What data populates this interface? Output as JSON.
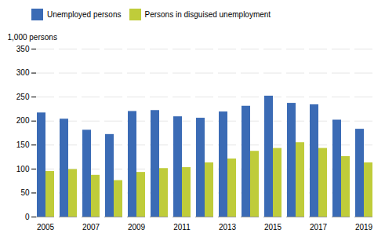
{
  "chart_data": {
    "type": "bar",
    "categories": [
      "2005",
      null,
      "2007",
      null,
      "2009",
      null,
      "2011",
      null,
      "2013",
      null,
      "2015",
      null,
      "2017",
      null,
      "2019"
    ],
    "series": [
      {
        "name": "Unemployed persons",
        "color": "#3B6BB5",
        "values": [
          217,
          204,
          181,
          172,
          220,
          222,
          209,
          206,
          219,
          231,
          252,
          237,
          234,
          202,
          183
        ]
      },
      {
        "name": "Persons in disguised unemployment",
        "color": "#BFCC3A",
        "values": [
          95,
          99,
          87,
          76,
          93,
          101,
          103,
          113,
          121,
          137,
          143,
          155,
          143,
          126,
          113
        ]
      }
    ],
    "ylabel": "1,000 persons",
    "ylim": [
      0,
      350
    ],
    "yticks": [
      0,
      50,
      100,
      150,
      200,
      250,
      300,
      350
    ],
    "grid": true,
    "legend": "top-left"
  }
}
